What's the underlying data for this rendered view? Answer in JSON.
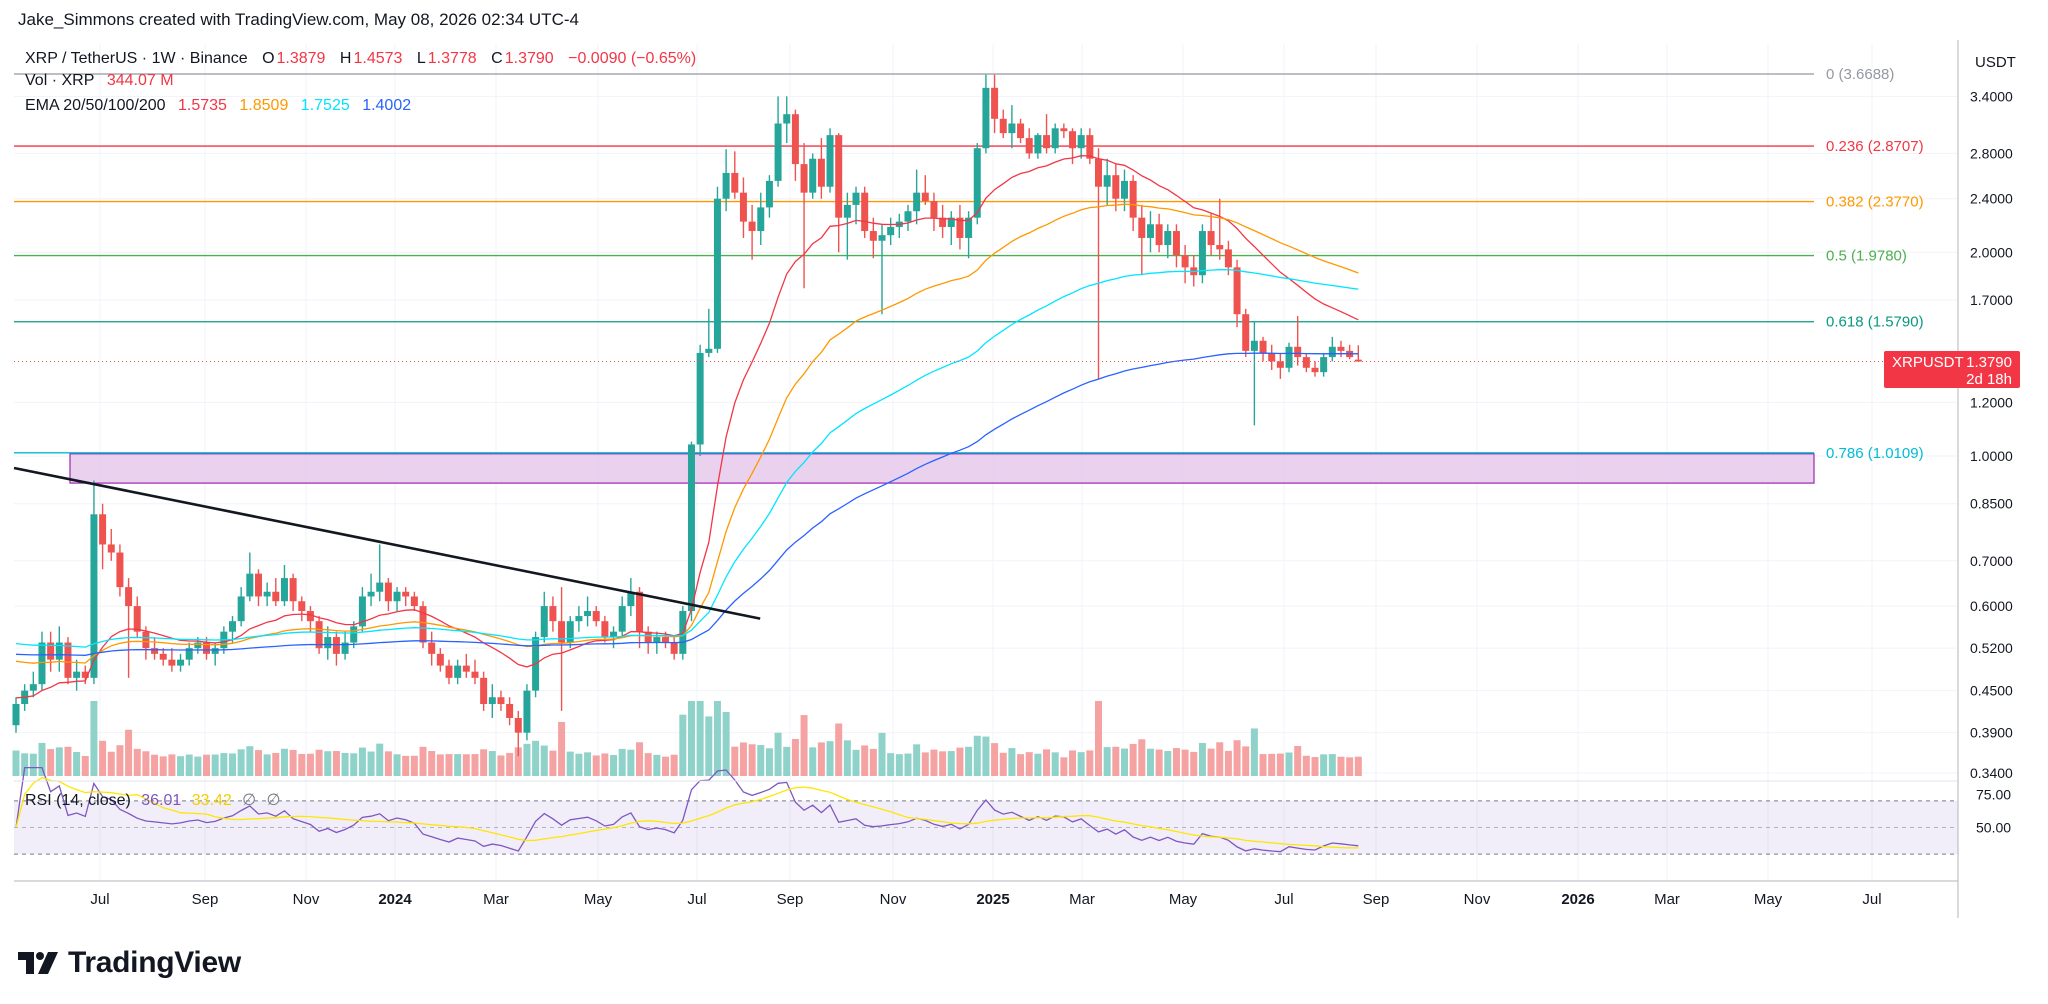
{
  "header": {
    "created_by": "Jake_Simmons created with TradingView.com, May 08, 2026 02:34 UTC-4"
  },
  "symbol_line": {
    "symbol": "XRP / TetherUS · 1W · Binance",
    "open_label": "O",
    "open": "1.3879",
    "high_label": "H",
    "high": "1.4573",
    "low_label": "L",
    "low": "1.3778",
    "close_label": "C",
    "close": "1.3790",
    "change": "−0.0090 (−0.65%)"
  },
  "volume_line": {
    "label": "Vol · XRP",
    "value": "344.07 M"
  },
  "ema_line": {
    "label": "EMA 20/50/100/200",
    "ema20": "1.5735",
    "ema50": "1.8509",
    "ema100": "1.7525",
    "ema200": "1.4002"
  },
  "rsi_line": {
    "label": "RSI (14, close)",
    "rsi": "36.01",
    "ma": "33.42",
    "ext1": "∅",
    "ext2": "∅"
  },
  "price_tag": {
    "symbol": "XRPUSDT",
    "price": "1.3790",
    "countdown": "2d 18h"
  },
  "axis": {
    "currency": "USDT",
    "right_labels": [
      "3.4000",
      "2.8000",
      "2.4000",
      "2.0000",
      "1.7000",
      "1.2000",
      "1.0000",
      "0.8500",
      "0.7000",
      "0.6000",
      "0.5200",
      "0.4500",
      "0.3900",
      "0.3400"
    ],
    "rsi_labels": [
      "75.00",
      "50.00"
    ],
    "time_labels": [
      "Jul",
      "Sep",
      "Nov",
      "2024",
      "Mar",
      "May",
      "Jul",
      "Sep",
      "Nov",
      "2025",
      "Mar",
      "May",
      "Jul",
      "Sep",
      "Nov",
      "2026",
      "Mar",
      "May",
      "Jul"
    ]
  },
  "brand": {
    "name": "TradingView"
  },
  "colors": {
    "up": "#26a69a",
    "down": "#ef5350",
    "vol_up": "#8fd2c9",
    "vol_down": "#f4a3a2",
    "ema20": "#f23645",
    "ema50": "#ff9800",
    "ema100": "#00e5ff",
    "ema200": "#2962ff",
    "rsi": "#7e57c2",
    "rsi_ma": "#ffe600",
    "zone": "#e1bee7"
  },
  "chart_data": {
    "type": "candlestick",
    "interval": "1W",
    "x_range": [
      "2023-06",
      "2026-07"
    ],
    "y_scale": "log",
    "y_range": [
      0.34,
      3.67
    ],
    "fib_levels": [
      {
        "ratio": "0",
        "price": 3.6688,
        "label": "0 (3.6688)",
        "color": "#9598a1"
      },
      {
        "ratio": "0.236",
        "price": 2.8707,
        "label": "0.236 (2.8707)",
        "color": "#f23645"
      },
      {
        "ratio": "0.382",
        "price": 2.377,
        "label": "0.382 (2.3770)",
        "color": "#ff9800"
      },
      {
        "ratio": "0.5",
        "price": 1.978,
        "label": "0.5 (1.9780)",
        "color": "#4caf50"
      },
      {
        "ratio": "0.618",
        "price": 1.579,
        "label": "0.618 (1.5790)",
        "color": "#089981"
      },
      {
        "ratio": "0.786",
        "price": 1.0109,
        "label": "0.786 (1.0109)",
        "color": "#00bcd4"
      }
    ],
    "support_zone": {
      "top": 1.0109,
      "bottom": 0.915
    },
    "trendline": [
      {
        "date": "2023-06-01",
        "price": 0.96
      },
      {
        "date": "2025-01-08",
        "price": 0.575
      }
    ],
    "last_price": 1.379,
    "candles": [
      {
        "o": 0.4,
        "h": 0.44,
        "l": 0.39,
        "c": 0.43
      },
      {
        "o": 0.43,
        "h": 0.46,
        "l": 0.42,
        "c": 0.45
      },
      {
        "o": 0.45,
        "h": 0.48,
        "l": 0.44,
        "c": 0.46
      },
      {
        "o": 0.46,
        "h": 0.55,
        "l": 0.45,
        "c": 0.53
      },
      {
        "o": 0.53,
        "h": 0.55,
        "l": 0.48,
        "c": 0.5
      },
      {
        "o": 0.5,
        "h": 0.56,
        "l": 0.48,
        "c": 0.53
      },
      {
        "o": 0.53,
        "h": 0.54,
        "l": 0.46,
        "c": 0.47
      },
      {
        "o": 0.47,
        "h": 0.5,
        "l": 0.45,
        "c": 0.48
      },
      {
        "o": 0.48,
        "h": 0.49,
        "l": 0.46,
        "c": 0.47
      },
      {
        "o": 0.47,
        "h": 0.92,
        "l": 0.46,
        "c": 0.82
      },
      {
        "o": 0.82,
        "h": 0.85,
        "l": 0.68,
        "c": 0.74
      },
      {
        "o": 0.74,
        "h": 0.78,
        "l": 0.7,
        "c": 0.72
      },
      {
        "o": 0.72,
        "h": 0.74,
        "l": 0.62,
        "c": 0.64
      },
      {
        "o": 0.64,
        "h": 0.66,
        "l": 0.47,
        "c": 0.6
      },
      {
        "o": 0.6,
        "h": 0.62,
        "l": 0.54,
        "c": 0.55
      },
      {
        "o": 0.55,
        "h": 0.56,
        "l": 0.5,
        "c": 0.52
      },
      {
        "o": 0.52,
        "h": 0.54,
        "l": 0.5,
        "c": 0.51
      },
      {
        "o": 0.51,
        "h": 0.52,
        "l": 0.49,
        "c": 0.5
      },
      {
        "o": 0.5,
        "h": 0.52,
        "l": 0.48,
        "c": 0.49
      },
      {
        "o": 0.49,
        "h": 0.51,
        "l": 0.48,
        "c": 0.5
      },
      {
        "o": 0.5,
        "h": 0.53,
        "l": 0.49,
        "c": 0.52
      },
      {
        "o": 0.52,
        "h": 0.54,
        "l": 0.51,
        "c": 0.53
      },
      {
        "o": 0.53,
        "h": 0.54,
        "l": 0.5,
        "c": 0.51
      },
      {
        "o": 0.51,
        "h": 0.53,
        "l": 0.49,
        "c": 0.52
      },
      {
        "o": 0.52,
        "h": 0.56,
        "l": 0.51,
        "c": 0.55
      },
      {
        "o": 0.55,
        "h": 0.58,
        "l": 0.53,
        "c": 0.57
      },
      {
        "o": 0.57,
        "h": 0.64,
        "l": 0.56,
        "c": 0.62
      },
      {
        "o": 0.62,
        "h": 0.72,
        "l": 0.61,
        "c": 0.67
      },
      {
        "o": 0.67,
        "h": 0.68,
        "l": 0.6,
        "c": 0.62
      },
      {
        "o": 0.62,
        "h": 0.65,
        "l": 0.6,
        "c": 0.63
      },
      {
        "o": 0.63,
        "h": 0.66,
        "l": 0.6,
        "c": 0.61
      },
      {
        "o": 0.61,
        "h": 0.69,
        "l": 0.6,
        "c": 0.66
      },
      {
        "o": 0.66,
        "h": 0.67,
        "l": 0.59,
        "c": 0.61
      },
      {
        "o": 0.61,
        "h": 0.62,
        "l": 0.57,
        "c": 0.59
      },
      {
        "o": 0.59,
        "h": 0.6,
        "l": 0.55,
        "c": 0.57
      },
      {
        "o": 0.57,
        "h": 0.58,
        "l": 0.51,
        "c": 0.52
      },
      {
        "o": 0.52,
        "h": 0.56,
        "l": 0.5,
        "c": 0.54
      },
      {
        "o": 0.54,
        "h": 0.55,
        "l": 0.49,
        "c": 0.51
      },
      {
        "o": 0.51,
        "h": 0.55,
        "l": 0.5,
        "c": 0.53
      },
      {
        "o": 0.53,
        "h": 0.57,
        "l": 0.52,
        "c": 0.56
      },
      {
        "o": 0.56,
        "h": 0.64,
        "l": 0.55,
        "c": 0.62
      },
      {
        "o": 0.62,
        "h": 0.67,
        "l": 0.6,
        "c": 0.63
      },
      {
        "o": 0.63,
        "h": 0.74,
        "l": 0.61,
        "c": 0.65
      },
      {
        "o": 0.65,
        "h": 0.66,
        "l": 0.59,
        "c": 0.61
      },
      {
        "o": 0.61,
        "h": 0.64,
        "l": 0.59,
        "c": 0.63
      },
      {
        "o": 0.63,
        "h": 0.64,
        "l": 0.6,
        "c": 0.62
      },
      {
        "o": 0.62,
        "h": 0.63,
        "l": 0.59,
        "c": 0.6
      },
      {
        "o": 0.6,
        "h": 0.61,
        "l": 0.52,
        "c": 0.53
      },
      {
        "o": 0.53,
        "h": 0.55,
        "l": 0.49,
        "c": 0.51
      },
      {
        "o": 0.51,
        "h": 0.52,
        "l": 0.48,
        "c": 0.49
      },
      {
        "o": 0.49,
        "h": 0.5,
        "l": 0.46,
        "c": 0.47
      },
      {
        "o": 0.47,
        "h": 0.5,
        "l": 0.46,
        "c": 0.49
      },
      {
        "o": 0.49,
        "h": 0.51,
        "l": 0.47,
        "c": 0.48
      },
      {
        "o": 0.48,
        "h": 0.5,
        "l": 0.46,
        "c": 0.47
      },
      {
        "o": 0.47,
        "h": 0.48,
        "l": 0.42,
        "c": 0.43
      },
      {
        "o": 0.43,
        "h": 0.46,
        "l": 0.41,
        "c": 0.44
      },
      {
        "o": 0.44,
        "h": 0.45,
        "l": 0.42,
        "c": 0.43
      },
      {
        "o": 0.43,
        "h": 0.44,
        "l": 0.4,
        "c": 0.41
      },
      {
        "o": 0.41,
        "h": 0.42,
        "l": 0.36,
        "c": 0.39
      },
      {
        "o": 0.39,
        "h": 0.46,
        "l": 0.38,
        "c": 0.45
      },
      {
        "o": 0.45,
        "h": 0.55,
        "l": 0.44,
        "c": 0.54
      },
      {
        "o": 0.54,
        "h": 0.63,
        "l": 0.53,
        "c": 0.6
      },
      {
        "o": 0.6,
        "h": 0.62,
        "l": 0.55,
        "c": 0.57
      },
      {
        "o": 0.57,
        "h": 0.64,
        "l": 0.42,
        "c": 0.53
      },
      {
        "o": 0.53,
        "h": 0.58,
        "l": 0.52,
        "c": 0.57
      },
      {
        "o": 0.57,
        "h": 0.6,
        "l": 0.55,
        "c": 0.58
      },
      {
        "o": 0.58,
        "h": 0.62,
        "l": 0.56,
        "c": 0.59
      },
      {
        "o": 0.59,
        "h": 0.6,
        "l": 0.56,
        "c": 0.57
      },
      {
        "o": 0.57,
        "h": 0.58,
        "l": 0.53,
        "c": 0.54
      },
      {
        "o": 0.54,
        "h": 0.56,
        "l": 0.52,
        "c": 0.55
      },
      {
        "o": 0.55,
        "h": 0.62,
        "l": 0.54,
        "c": 0.6
      },
      {
        "o": 0.6,
        "h": 0.66,
        "l": 0.58,
        "c": 0.63
      },
      {
        "o": 0.63,
        "h": 0.64,
        "l": 0.52,
        "c": 0.55
      },
      {
        "o": 0.55,
        "h": 0.56,
        "l": 0.51,
        "c": 0.53
      },
      {
        "o": 0.53,
        "h": 0.55,
        "l": 0.51,
        "c": 0.54
      },
      {
        "o": 0.54,
        "h": 0.55,
        "l": 0.52,
        "c": 0.53
      },
      {
        "o": 0.53,
        "h": 0.54,
        "l": 0.5,
        "c": 0.51
      },
      {
        "o": 0.51,
        "h": 0.6,
        "l": 0.5,
        "c": 0.59
      },
      {
        "o": 0.59,
        "h": 1.05,
        "l": 0.57,
        "c": 1.04
      },
      {
        "o": 1.04,
        "h": 1.46,
        "l": 1.0,
        "c": 1.42
      },
      {
        "o": 1.42,
        "h": 1.65,
        "l": 1.4,
        "c": 1.44
      },
      {
        "o": 1.44,
        "h": 2.5,
        "l": 1.42,
        "c": 2.4
      },
      {
        "o": 2.4,
        "h": 2.84,
        "l": 2.3,
        "c": 2.62
      },
      {
        "o": 2.62,
        "h": 2.82,
        "l": 2.4,
        "c": 2.45
      },
      {
        "o": 2.45,
        "h": 2.58,
        "l": 2.1,
        "c": 2.22
      },
      {
        "o": 2.22,
        "h": 2.35,
        "l": 1.95,
        "c": 2.15
      },
      {
        "o": 2.15,
        "h": 2.45,
        "l": 2.05,
        "c": 2.33
      },
      {
        "o": 2.33,
        "h": 2.6,
        "l": 2.25,
        "c": 2.55
      },
      {
        "o": 2.55,
        "h": 3.4,
        "l": 2.5,
        "c": 3.1
      },
      {
        "o": 3.1,
        "h": 3.4,
        "l": 2.9,
        "c": 3.2
      },
      {
        "o": 3.2,
        "h": 3.25,
        "l": 2.55,
        "c": 2.7
      },
      {
        "o": 2.7,
        "h": 2.9,
        "l": 1.77,
        "c": 2.45
      },
      {
        "o": 2.45,
        "h": 2.8,
        "l": 2.4,
        "c": 2.75
      },
      {
        "o": 2.75,
        "h": 2.95,
        "l": 2.4,
        "c": 2.5
      },
      {
        "o": 2.5,
        "h": 3.05,
        "l": 2.45,
        "c": 2.98
      },
      {
        "o": 2.98,
        "h": 3.0,
        "l": 2.0,
        "c": 2.25
      },
      {
        "o": 2.25,
        "h": 2.45,
        "l": 1.95,
        "c": 2.35
      },
      {
        "o": 2.35,
        "h": 2.5,
        "l": 2.2,
        "c": 2.45
      },
      {
        "o": 2.45,
        "h": 2.5,
        "l": 2.1,
        "c": 2.15
      },
      {
        "o": 2.15,
        "h": 2.25,
        "l": 1.96,
        "c": 2.08
      },
      {
        "o": 2.08,
        "h": 2.2,
        "l": 1.62,
        "c": 2.12
      },
      {
        "o": 2.12,
        "h": 2.25,
        "l": 2.05,
        "c": 2.18
      },
      {
        "o": 2.18,
        "h": 2.28,
        "l": 2.1,
        "c": 2.22
      },
      {
        "o": 2.22,
        "h": 2.35,
        "l": 2.15,
        "c": 2.3
      },
      {
        "o": 2.3,
        "h": 2.65,
        "l": 2.2,
        "c": 2.45
      },
      {
        "o": 2.45,
        "h": 2.6,
        "l": 2.35,
        "c": 2.38
      },
      {
        "o": 2.38,
        "h": 2.45,
        "l": 2.15,
        "c": 2.25
      },
      {
        "o": 2.25,
        "h": 2.35,
        "l": 2.1,
        "c": 2.18
      },
      {
        "o": 2.18,
        "h": 2.3,
        "l": 2.05,
        "c": 2.25
      },
      {
        "o": 2.25,
        "h": 2.35,
        "l": 2.02,
        "c": 2.1
      },
      {
        "o": 2.1,
        "h": 2.3,
        "l": 1.96,
        "c": 2.25
      },
      {
        "o": 2.25,
        "h": 2.9,
        "l": 2.2,
        "c": 2.85
      },
      {
        "o": 2.85,
        "h": 3.66,
        "l": 2.8,
        "c": 3.5
      },
      {
        "o": 3.5,
        "h": 3.66,
        "l": 3.0,
        "c": 3.15
      },
      {
        "o": 3.15,
        "h": 3.25,
        "l": 2.95,
        "c": 3.0
      },
      {
        "o": 3.0,
        "h": 3.3,
        "l": 2.85,
        "c": 3.1
      },
      {
        "o": 3.1,
        "h": 3.15,
        "l": 2.9,
        "c": 2.95
      },
      {
        "o": 2.95,
        "h": 3.05,
        "l": 2.75,
        "c": 2.8
      },
      {
        "o": 2.8,
        "h": 3.0,
        "l": 2.75,
        "c": 2.98
      },
      {
        "o": 2.98,
        "h": 3.2,
        "l": 2.8,
        "c": 2.85
      },
      {
        "o": 2.85,
        "h": 3.1,
        "l": 2.8,
        "c": 3.05
      },
      {
        "o": 3.05,
        "h": 3.1,
        "l": 2.95,
        "c": 3.02
      },
      {
        "o": 3.02,
        "h": 3.05,
        "l": 2.7,
        "c": 2.85
      },
      {
        "o": 2.85,
        "h": 3.05,
        "l": 2.75,
        "c": 2.98
      },
      {
        "o": 2.98,
        "h": 3.05,
        "l": 2.7,
        "c": 2.75
      },
      {
        "o": 2.75,
        "h": 2.85,
        "l": 1.3,
        "c": 2.5
      },
      {
        "o": 2.5,
        "h": 2.75,
        "l": 2.35,
        "c": 2.6
      },
      {
        "o": 2.6,
        "h": 2.7,
        "l": 2.3,
        "c": 2.4
      },
      {
        "o": 2.4,
        "h": 2.65,
        "l": 2.3,
        "c": 2.55
      },
      {
        "o": 2.55,
        "h": 2.6,
        "l": 2.15,
        "c": 2.25
      },
      {
        "o": 2.25,
        "h": 2.35,
        "l": 1.85,
        "c": 2.1
      },
      {
        "o": 2.1,
        "h": 2.3,
        "l": 2.0,
        "c": 2.2
      },
      {
        "o": 2.2,
        "h": 2.28,
        "l": 2.0,
        "c": 2.05
      },
      {
        "o": 2.05,
        "h": 2.2,
        "l": 1.96,
        "c": 2.15
      },
      {
        "o": 2.15,
        "h": 2.2,
        "l": 1.9,
        "c": 1.98
      },
      {
        "o": 1.98,
        "h": 2.05,
        "l": 1.8,
        "c": 1.9
      },
      {
        "o": 1.9,
        "h": 1.98,
        "l": 1.78,
        "c": 1.85
      },
      {
        "o": 1.85,
        "h": 2.2,
        "l": 1.8,
        "c": 2.15
      },
      {
        "o": 2.15,
        "h": 2.28,
        "l": 1.98,
        "c": 2.05
      },
      {
        "o": 2.05,
        "h": 2.4,
        "l": 1.95,
        "c": 2.02
      },
      {
        "o": 2.02,
        "h": 2.08,
        "l": 1.85,
        "c": 1.9
      },
      {
        "o": 1.9,
        "h": 1.95,
        "l": 1.55,
        "c": 1.62
      },
      {
        "o": 1.62,
        "h": 1.65,
        "l": 1.4,
        "c": 1.43
      },
      {
        "o": 1.43,
        "h": 1.58,
        "l": 1.11,
        "c": 1.48
      },
      {
        "o": 1.48,
        "h": 1.5,
        "l": 1.38,
        "c": 1.42
      },
      {
        "o": 1.42,
        "h": 1.46,
        "l": 1.34,
        "c": 1.38
      },
      {
        "o": 1.38,
        "h": 1.42,
        "l": 1.3,
        "c": 1.35
      },
      {
        "o": 1.35,
        "h": 1.47,
        "l": 1.33,
        "c": 1.45
      },
      {
        "o": 1.45,
        "h": 1.61,
        "l": 1.36,
        "c": 1.4
      },
      {
        "o": 1.4,
        "h": 1.42,
        "l": 1.33,
        "c": 1.35
      },
      {
        "o": 1.35,
        "h": 1.38,
        "l": 1.31,
        "c": 1.33
      },
      {
        "o": 1.33,
        "h": 1.42,
        "l": 1.31,
        "c": 1.4
      },
      {
        "o": 1.4,
        "h": 1.5,
        "l": 1.38,
        "c": 1.45
      },
      {
        "o": 1.45,
        "h": 1.48,
        "l": 1.4,
        "c": 1.43
      },
      {
        "o": 1.43,
        "h": 1.46,
        "l": 1.39,
        "c": 1.4
      },
      {
        "o": 1.3879,
        "h": 1.4573,
        "l": 1.3778,
        "c": 1.379
      }
    ]
  }
}
